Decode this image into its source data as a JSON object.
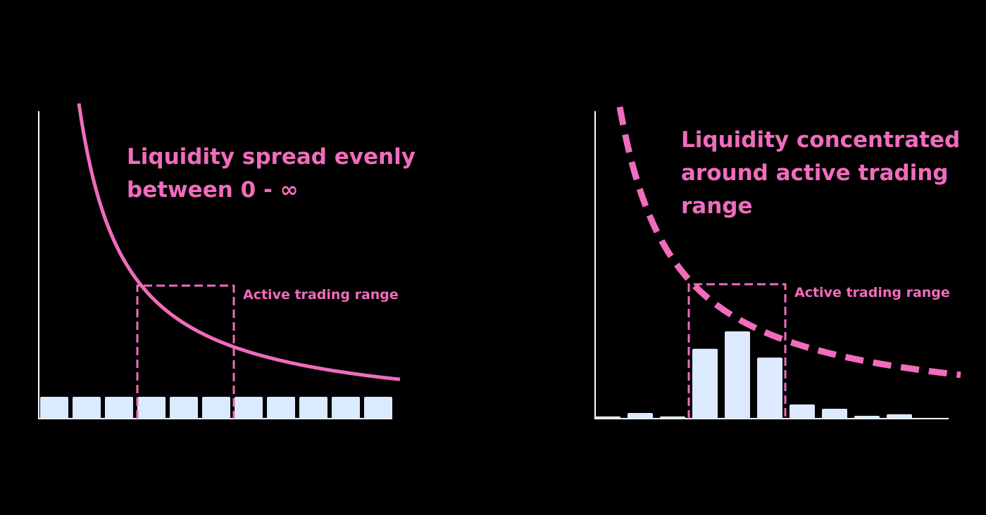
{
  "colors": {
    "background": "#000000",
    "accent": "#f06cbc",
    "bars": "#dbeafe",
    "axis": "#ffffff"
  },
  "chart_data": [
    {
      "type": "bar",
      "annotation": [
        "Liquidity spread evenly",
        "between 0 - ∞"
      ],
      "range_label": "Active trading range",
      "curve": "solid",
      "range_bars": [
        3,
        5
      ],
      "values": [
        1,
        1,
        1,
        1,
        1,
        1,
        1,
        1,
        1,
        1,
        1
      ]
    },
    {
      "type": "bar",
      "annotation": [
        "Liquidity concentrated",
        "around active trading",
        "range"
      ],
      "range_label": "Active trading range",
      "curve": "dashed",
      "range_bars": [
        3,
        5
      ],
      "values": [
        0.1,
        0.26,
        0.1,
        3.2,
        4.0,
        2.8,
        0.65,
        0.45,
        0.13,
        0.2
      ]
    }
  ]
}
